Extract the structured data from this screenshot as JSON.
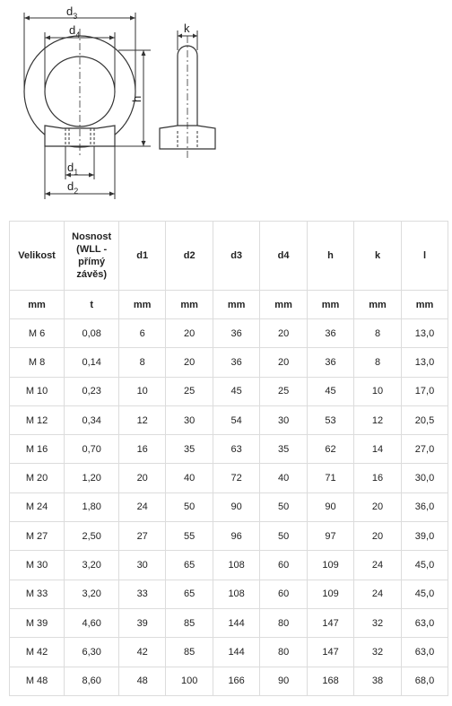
{
  "drawing": {
    "labels": {
      "d3": "d",
      "d3_sub": "3",
      "d4": "d",
      "d4_sub": "4",
      "d1": "d",
      "d1_sub": "1",
      "d2": "d",
      "d2_sub": "2",
      "h": "h",
      "k": "k"
    }
  },
  "table": {
    "headers": [
      "Velikost",
      "Nosnost (WLL - přímý závěs)",
      "d1",
      "d2",
      "d3",
      "d4",
      "h",
      "k",
      "l"
    ],
    "units": [
      "mm",
      "t",
      "mm",
      "mm",
      "mm",
      "mm",
      "mm",
      "mm",
      "mm"
    ],
    "rows": [
      [
        "M 6",
        "0,08",
        "6",
        "20",
        "36",
        "20",
        "36",
        "8",
        "13,0"
      ],
      [
        "M 8",
        "0,14",
        "8",
        "20",
        "36",
        "20",
        "36",
        "8",
        "13,0"
      ],
      [
        "M 10",
        "0,23",
        "10",
        "25",
        "45",
        "25",
        "45",
        "10",
        "17,0"
      ],
      [
        "M 12",
        "0,34",
        "12",
        "30",
        "54",
        "30",
        "53",
        "12",
        "20,5"
      ],
      [
        "M 16",
        "0,70",
        "16",
        "35",
        "63",
        "35",
        "62",
        "14",
        "27,0"
      ],
      [
        "M 20",
        "1,20",
        "20",
        "40",
        "72",
        "40",
        "71",
        "16",
        "30,0"
      ],
      [
        "M 24",
        "1,80",
        "24",
        "50",
        "90",
        "50",
        "90",
        "20",
        "36,0"
      ],
      [
        "M 27",
        "2,50",
        "27",
        "55",
        "96",
        "50",
        "97",
        "20",
        "39,0"
      ],
      [
        "M 30",
        "3,20",
        "30",
        "65",
        "108",
        "60",
        "109",
        "24",
        "45,0"
      ],
      [
        "M 33",
        "3,20",
        "33",
        "65",
        "108",
        "60",
        "109",
        "24",
        "45,0"
      ],
      [
        "M 39",
        "4,60",
        "39",
        "85",
        "144",
        "80",
        "147",
        "32",
        "63,0"
      ],
      [
        "M 42",
        "6,30",
        "42",
        "85",
        "144",
        "80",
        "147",
        "32",
        "63,0"
      ],
      [
        "M 48",
        "8,60",
        "48",
        "100",
        "166",
        "90",
        "168",
        "38",
        "68,0"
      ]
    ]
  }
}
